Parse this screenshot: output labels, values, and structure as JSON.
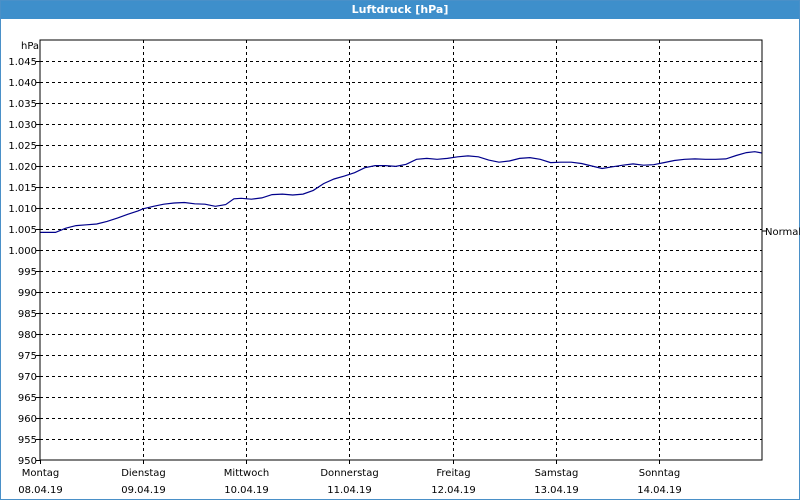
{
  "window": {
    "title": "Luftdruck [hPa]"
  },
  "chart_data": {
    "type": "line",
    "title": "Luftdruck [hPa]",
    "ylabel": "hPa",
    "ylim": [
      950,
      1050
    ],
    "y_ticks": [
      950,
      955,
      960,
      965,
      970,
      975,
      980,
      985,
      990,
      995,
      1000,
      1005,
      1010,
      1015,
      1020,
      1025,
      1030,
      1035,
      1040,
      1045
    ],
    "y_tick_labels": [
      "950",
      "955",
      "960",
      "965",
      "970",
      "975",
      "980",
      "985",
      "990",
      "995",
      "1.000",
      "1.005",
      "1.010",
      "1.015",
      "1.020",
      "1.025",
      "1.030",
      "1.035",
      "1.040",
      "1.045"
    ],
    "xlim": [
      0,
      7
    ],
    "x_ticks": [
      {
        "day": "Montag",
        "date": "08.04.19"
      },
      {
        "day": "Dienstag",
        "date": "09.04.19"
      },
      {
        "day": "Mittwoch",
        "date": "10.04.19"
      },
      {
        "day": "Donnerstag",
        "date": "11.04.19"
      },
      {
        "day": "Freitag",
        "date": "12.04.19"
      },
      {
        "day": "Samstag",
        "date": "13.04.19"
      },
      {
        "day": "Sonntag",
        "date": "14.04.19"
      }
    ],
    "grid": true,
    "reference_line": {
      "label": "Normal",
      "value": 1003.2
    },
    "series": [
      {
        "color": "#00008b",
        "x": [
          0.0,
          0.15,
          0.25,
          0.35,
          0.45,
          0.55,
          0.65,
          0.75,
          0.85,
          0.95,
          1.0,
          1.1,
          1.2,
          1.3,
          1.4,
          1.5,
          1.6,
          1.7,
          1.8,
          1.88,
          1.95,
          2.05,
          2.15,
          2.25,
          2.35,
          2.45,
          2.55,
          2.65,
          2.75,
          2.85,
          2.95,
          3.05,
          3.15,
          3.25,
          3.35,
          3.45,
          3.55,
          3.65,
          3.75,
          3.85,
          3.95,
          4.05,
          4.15,
          4.25,
          4.35,
          4.45,
          4.55,
          4.65,
          4.75,
          4.85,
          4.95,
          5.05,
          5.15,
          5.25,
          5.35,
          5.45,
          5.55,
          5.65,
          5.75,
          5.85,
          5.95,
          6.05,
          6.15,
          6.25,
          6.35,
          6.45,
          6.55,
          6.65,
          6.75,
          6.85,
          6.93,
          7.0
        ],
        "values": [
          1004.2,
          1004.2,
          1005.2,
          1005.8,
          1006.0,
          1006.2,
          1006.8,
          1007.6,
          1008.5,
          1009.3,
          1009.8,
          1010.4,
          1010.9,
          1011.2,
          1011.3,
          1011.0,
          1010.9,
          1010.4,
          1010.8,
          1012.2,
          1012.3,
          1012.1,
          1012.4,
          1013.2,
          1013.3,
          1013.1,
          1013.3,
          1014.2,
          1015.8,
          1016.9,
          1017.6,
          1018.4,
          1019.6,
          1020.1,
          1020.1,
          1019.9,
          1020.4,
          1021.6,
          1021.8,
          1021.6,
          1021.8,
          1022.2,
          1022.4,
          1022.2,
          1021.4,
          1020.9,
          1021.2,
          1021.8,
          1022.0,
          1021.6,
          1020.8,
          1020.9,
          1020.9,
          1020.6,
          1020.0,
          1019.4,
          1019.8,
          1020.2,
          1020.5,
          1020.2,
          1020.3,
          1020.8,
          1021.3,
          1021.6,
          1021.7,
          1021.6,
          1021.6,
          1021.7,
          1022.5,
          1023.2,
          1023.4,
          1023.1
        ]
      }
    ]
  }
}
